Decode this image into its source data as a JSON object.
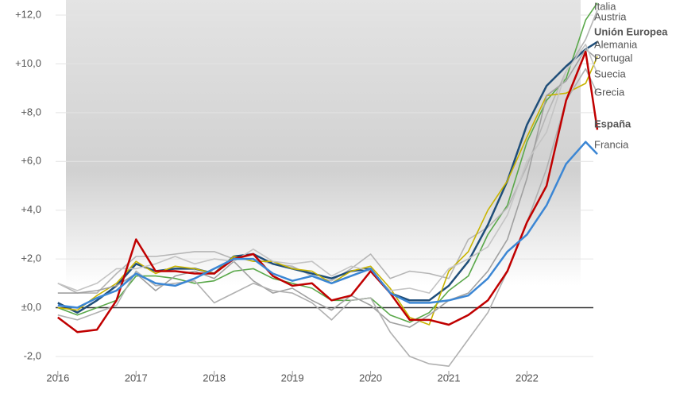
{
  "chart_data": {
    "type": "line",
    "x": [
      2016.0,
      2016.25,
      2016.5,
      2016.75,
      2017.0,
      2017.25,
      2017.5,
      2017.75,
      2018.0,
      2018.25,
      2018.5,
      2018.75,
      2019.0,
      2019.25,
      2019.5,
      2019.75,
      2020.0,
      2020.25,
      2020.5,
      2020.75,
      2021.0,
      2021.25,
      2021.5,
      2021.75,
      2022.0,
      2022.25,
      2022.5,
      2022.75,
      2022.9
    ],
    "series": [
      {
        "name": "Italia",
        "color": "#5aa84a",
        "values": [
          0.0,
          -0.3,
          0.0,
          0.3,
          1.3,
          1.3,
          1.2,
          1.0,
          1.1,
          1.5,
          1.6,
          1.2,
          1.0,
          0.8,
          0.3,
          0.3,
          0.4,
          -0.3,
          -0.6,
          -0.2,
          0.7,
          1.3,
          3.0,
          4.2,
          6.8,
          8.5,
          9.4,
          11.8,
          12.5
        ]
      },
      {
        "name": "Austria",
        "color": "#b5b5b5",
        "values": [
          1.0,
          0.6,
          0.6,
          1.4,
          2.1,
          2.1,
          2.2,
          2.3,
          2.3,
          2.0,
          2.0,
          1.8,
          1.7,
          1.3,
          1.1,
          1.6,
          2.2,
          1.2,
          1.5,
          1.4,
          1.2,
          2.8,
          3.3,
          4.1,
          5.8,
          7.9,
          9.7,
          11.0,
          12.2
        ]
      },
      {
        "name": "Unión Europea",
        "color": "#1f4e79",
        "values": [
          0.2,
          -0.2,
          0.3,
          0.9,
          1.8,
          1.5,
          1.6,
          1.6,
          1.4,
          2.1,
          2.2,
          1.8,
          1.6,
          1.4,
          1.2,
          1.5,
          1.6,
          0.6,
          0.3,
          0.3,
          0.9,
          1.9,
          3.4,
          5.2,
          7.5,
          9.1,
          9.9,
          10.6,
          10.9
        ]
      },
      {
        "name": "Alemania",
        "color": "#c8b400",
        "values": [
          0.0,
          -0.1,
          0.5,
          1.0,
          1.9,
          1.4,
          1.7,
          1.6,
          1.4,
          2.1,
          1.9,
          1.9,
          1.6,
          1.5,
          1.0,
          1.5,
          1.7,
          0.8,
          -0.4,
          -0.7,
          1.5,
          2.3,
          4.0,
          5.2,
          7.0,
          8.7,
          8.8,
          9.2,
          10.3
        ]
      },
      {
        "name": "Portugal",
        "color": "#a0a0a0",
        "values": [
          0.6,
          0.6,
          0.7,
          0.9,
          1.4,
          0.7,
          1.3,
          1.5,
          1.2,
          1.9,
          1.1,
          0.6,
          0.8,
          0.3,
          -0.1,
          0.5,
          0.1,
          -0.6,
          -0.8,
          -0.3,
          0.3,
          0.6,
          1.5,
          2.8,
          5.3,
          8.7,
          9.3,
          10.6,
          10.2
        ]
      },
      {
        "name": "Suecia",
        "color": "#c4c4c4",
        "values": [
          1.0,
          0.7,
          1.0,
          1.6,
          1.6,
          1.8,
          2.1,
          1.8,
          2.0,
          1.9,
          2.4,
          1.9,
          1.8,
          1.9,
          1.3,
          1.7,
          1.5,
          0.7,
          0.8,
          0.6,
          1.6,
          2.0,
          2.5,
          3.8,
          6.0,
          7.2,
          9.7,
          10.8,
          9.6
        ]
      },
      {
        "name": "Grecia",
        "color": "#b0b0b0",
        "values": [
          -0.3,
          -0.5,
          -0.2,
          0.1,
          1.5,
          0.9,
          1.0,
          1.1,
          0.2,
          0.6,
          1.0,
          0.7,
          0.6,
          0.2,
          -0.5,
          0.3,
          0.4,
          -1.0,
          -2.0,
          -2.3,
          -2.4,
          -1.3,
          -0.2,
          1.5,
          3.5,
          5.7,
          8.5,
          9.8,
          8.8
        ]
      },
      {
        "name": "España",
        "color": "#c00000",
        "values": [
          -0.4,
          -1.0,
          -0.9,
          0.3,
          2.8,
          1.5,
          1.5,
          1.4,
          1.4,
          2.0,
          2.2,
          1.3,
          0.9,
          1.0,
          0.3,
          0.5,
          1.5,
          0.6,
          -0.5,
          -0.5,
          -0.7,
          -0.3,
          0.3,
          1.5,
          3.5,
          5.0,
          8.5,
          10.5,
          7.3
        ]
      },
      {
        "name": "Francia",
        "color": "#3b86d4",
        "values": [
          0.1,
          0.0,
          0.4,
          0.7,
          1.4,
          1.0,
          0.9,
          1.2,
          1.6,
          2.0,
          2.0,
          1.4,
          1.1,
          1.3,
          1.0,
          1.3,
          1.6,
          0.6,
          0.2,
          0.2,
          0.3,
          0.5,
          1.2,
          2.3,
          3.0,
          4.2,
          5.9,
          6.8,
          6.3
        ]
      }
    ],
    "xlim": [
      2015.26,
      2024.2
    ],
    "xticks": [
      2016,
      2017,
      2018,
      2019,
      2020,
      2021,
      2022
    ],
    "ylim": [
      -3.5,
      12.62
    ],
    "yticks": [
      {
        "value": -2,
        "label": "-2,0"
      },
      {
        "value": 0,
        "label": "±0,0"
      },
      {
        "value": 2,
        "label": "+2,0"
      },
      {
        "value": 4,
        "label": "+4,0"
      },
      {
        "value": 6,
        "label": "+6,0"
      },
      {
        "value": 8,
        "label": "+8,0"
      },
      {
        "value": 10,
        "label": "+10,0"
      },
      {
        "value": 12,
        "label": "+12,0"
      }
    ],
    "grid": true
  }
}
